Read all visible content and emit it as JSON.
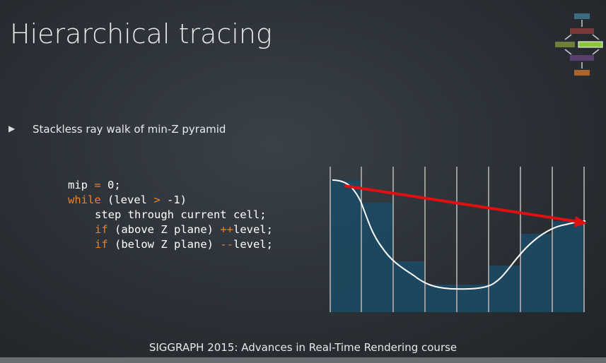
{
  "header": {
    "title": "Hierarchical tracing"
  },
  "bullets": [
    "Stackless ray walk of min-Z pyramid"
  ],
  "code": {
    "lines": [
      [
        {
          "text": "mip ",
          "color": "#ffffff"
        },
        {
          "text": "=",
          "color": "#e8832a"
        },
        {
          "text": " 0;",
          "color": "#ffffff"
        }
      ],
      [
        {
          "text": "while",
          "color": "#e8832a"
        },
        {
          "text": " (level ",
          "color": "#ffffff"
        },
        {
          "text": ">",
          "color": "#e8832a"
        },
        {
          "text": " -1)",
          "color": "#ffffff"
        }
      ],
      [
        {
          "text": "step through current cell;",
          "color": "#ffffff"
        }
      ],
      [
        {
          "text": "if",
          "color": "#e8832a"
        },
        {
          "text": " (above Z plane) ",
          "color": "#ffffff"
        },
        {
          "text": "++",
          "color": "#e8832a"
        },
        {
          "text": "level;",
          "color": "#ffffff"
        }
      ],
      [
        {
          "text": "if",
          "color": "#e8832a"
        },
        {
          "text": " (below Z plane) ",
          "color": "#ffffff"
        },
        {
          "text": "--",
          "color": "#e8832a"
        },
        {
          "text": "level;",
          "color": "#ffffff"
        }
      ]
    ]
  },
  "footer": {
    "text": "SIGGRAPH 2015: Advances in Real-Time Rendering course"
  }
}
